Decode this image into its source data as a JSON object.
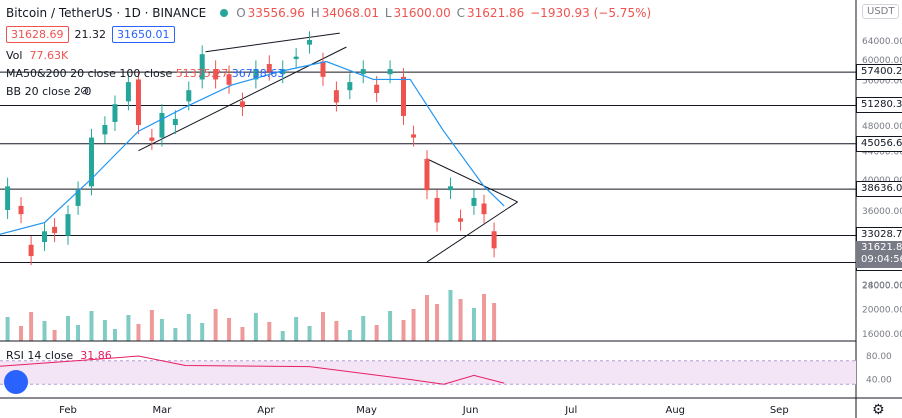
{
  "header": {
    "title": "Bitcoin / TetherUS · 1D · BINANCE",
    "ohlc_o_label": "O",
    "ohlc_o": "33556.96",
    "ohlc_h_label": "H",
    "ohlc_h": "34068.01",
    "ohlc_l_label": "L",
    "ohlc_l": "31600.00",
    "ohlc_c_label": "C",
    "ohlc_c": "31621.86",
    "ohlc_change": "−1930.93 (−5.75%)",
    "sell_price": "31628.69",
    "spread": "21.32",
    "buy_price": "31650.01",
    "vol_label": "Vol",
    "vol_value": "77.63K",
    "ma_label": "MA50&200 20 close 100 close",
    "ma_value1": "51375.27",
    "ma_value2": "36738.63",
    "bb_label": "BB 20 close 2 0",
    "currency": "USDT",
    "rsi_label": "RSI 14 close",
    "rsi_value": "31.86"
  },
  "colors": {
    "up": "#26a69a",
    "down": "#ef5350",
    "ma": "#2196f3",
    "rsi": "#e91e63",
    "rsi_band": "#f3e5f5",
    "text": "#131722",
    "grid_line": "#131722"
  },
  "icons": [
    "status-dot-icon",
    "eye-off-icon",
    "tradingview-logo-icon",
    "settings-gear-icon"
  ],
  "chart_data": {
    "type": "candlestick",
    "title": "Bitcoin / TetherUS · 1D · BINANCE",
    "x_ticks": [
      "Feb",
      "Mar",
      "Apr",
      "May",
      "Jun",
      "Jul",
      "Aug",
      "Sep"
    ],
    "y_ticks": [
      "64000.00",
      "60000.00",
      "56000.00",
      "52000.00",
      "48000.00",
      "44000.00",
      "40000.00",
      "36000.00",
      "32000.00",
      "28000.00",
      "24000.00",
      "20000.00",
      "16000.00"
    ],
    "y_scale": "log",
    "rsi_ticks": [
      "80.00",
      "40.00"
    ],
    "horizontal_levels": [
      {
        "label": "57400.25",
        "value": 57400.25
      },
      {
        "label": "51280.38",
        "value": 51280.38
      },
      {
        "label": "45056.63",
        "value": 45056.63
      },
      {
        "label": "38636.04",
        "value": 38636.04
      },
      {
        "label": "33028.72",
        "value": 33028.72
      },
      {
        "label": "30136.11",
        "value": 30136.11
      }
    ],
    "current_price": {
      "label": "31621.86",
      "countdown": "09:04:56"
    },
    "trendlines": [
      {
        "name": "channel-upper",
        "points": [
          [
            "2021-03-14",
            61500
          ],
          [
            "2021-04-23",
            65500
          ]
        ]
      },
      {
        "name": "channel-lower",
        "points": [
          [
            "2021-02-22",
            44000
          ],
          [
            "2021-04-25",
            62500
          ]
        ]
      },
      {
        "name": "triangle-upper",
        "points": [
          [
            "2021-05-19",
            42800
          ],
          [
            "2021-06-15",
            37000
          ]
        ]
      },
      {
        "name": "triangle-lower",
        "points": [
          [
            "2021-05-19",
            30200
          ],
          [
            "2021-06-15",
            37000
          ]
        ]
      }
    ],
    "ma_series_approx": [
      [
        "2021-01-10",
        33000
      ],
      [
        "2021-01-25",
        34500
      ],
      [
        "2021-02-08",
        40000
      ],
      [
        "2021-02-22",
        47000
      ],
      [
        "2021-03-08",
        51000
      ],
      [
        "2021-03-22",
        55000
      ],
      [
        "2021-04-05",
        57500
      ],
      [
        "2021-04-19",
        59500
      ],
      [
        "2021-05-03",
        56000
      ],
      [
        "2021-05-14",
        56000
      ],
      [
        "2021-05-24",
        47000
      ],
      [
        "2021-06-05",
        39000
      ],
      [
        "2021-06-11",
        36500
      ]
    ],
    "candles_approx": [
      [
        "2021-01-10",
        38000,
        39500
      ],
      [
        "2021-01-14",
        36000,
        39000
      ],
      [
        "2021-01-18",
        36500,
        35500
      ],
      [
        "2021-01-21",
        32000,
        30800
      ],
      [
        "2021-01-25",
        32300,
        33500
      ],
      [
        "2021-01-28",
        34000,
        33300
      ],
      [
        "2021-02-01",
        33000,
        35500
      ],
      [
        "2021-02-04",
        36500,
        38500
      ],
      [
        "2021-02-08",
        39000,
        46000
      ],
      [
        "2021-02-12",
        46500,
        48000
      ],
      [
        "2021-02-15",
        48500,
        51500
      ],
      [
        "2021-02-19",
        52000,
        55500
      ],
      [
        "2021-02-22",
        56000,
        48000
      ],
      [
        "2021-02-26",
        46000,
        45500
      ],
      [
        "2021-03-01",
        46000,
        50000
      ],
      [
        "2021-03-05",
        48000,
        49000
      ],
      [
        "2021-03-09",
        52000,
        54000
      ],
      [
        "2021-03-13",
        56000,
        61000
      ],
      [
        "2021-03-17",
        58000,
        56000
      ],
      [
        "2021-03-21",
        57000,
        55000
      ],
      [
        "2021-03-25",
        52000,
        51000
      ],
      [
        "2021-03-29",
        56000,
        58000
      ],
      [
        "2021-04-02",
        59000,
        57500
      ],
      [
        "2021-04-06",
        57000,
        58000
      ],
      [
        "2021-04-10",
        60000,
        60500
      ],
      [
        "2021-04-14",
        63000,
        64000
      ],
      [
        "2021-04-18",
        59500,
        56500
      ],
      [
        "2021-04-22",
        54000,
        51800
      ],
      [
        "2021-04-26",
        54000,
        55500
      ],
      [
        "2021-04-30",
        57000,
        58000
      ],
      [
        "2021-05-04",
        55000,
        53500
      ],
      [
        "2021-05-08",
        57000,
        58000
      ],
      [
        "2021-05-12",
        56500,
        49500
      ],
      [
        "2021-05-15",
        46500,
        46000
      ],
      [
        "2021-05-19",
        42800,
        38500
      ],
      [
        "2021-05-22",
        37500,
        34500
      ],
      [
        "2021-05-26",
        38500,
        39000
      ],
      [
        "2021-05-29",
        35000,
        34600
      ],
      [
        "2021-06-02",
        36500,
        37500
      ],
      [
        "2021-06-05",
        36800,
        35500
      ],
      [
        "2021-06-08",
        33500,
        31621.86
      ]
    ],
    "volume_ticks": [
      "24000.00",
      "20000.00",
      "16000.00"
    ],
    "rsi_series_approx": [
      [
        "2021-01-10",
        60
      ],
      [
        "2021-02-08",
        72
      ],
      [
        "2021-02-22",
        78
      ],
      [
        "2021-03-08",
        62
      ],
      [
        "2021-04-14",
        60
      ],
      [
        "2021-05-14",
        38
      ],
      [
        "2021-05-24",
        30
      ],
      [
        "2021-06-02",
        45
      ],
      [
        "2021-06-11",
        31.86
      ]
    ]
  }
}
